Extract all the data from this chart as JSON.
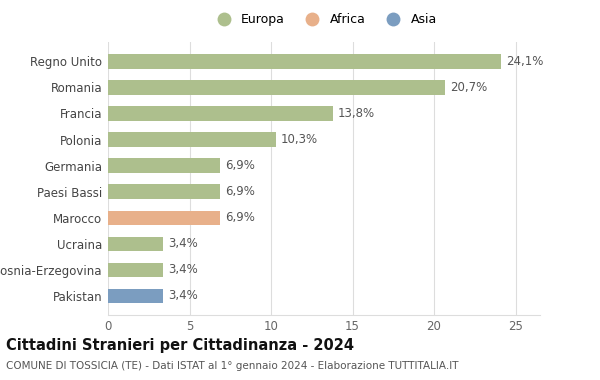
{
  "categories": [
    "Pakistan",
    "Bosnia-Erzegovina",
    "Ucraina",
    "Marocco",
    "Paesi Bassi",
    "Germania",
    "Polonia",
    "Francia",
    "Romania",
    "Regno Unito"
  ],
  "values": [
    3.4,
    3.4,
    3.4,
    6.9,
    6.9,
    6.9,
    10.3,
    13.8,
    20.7,
    24.1
  ],
  "labels": [
    "3,4%",
    "3,4%",
    "3,4%",
    "6,9%",
    "6,9%",
    "6,9%",
    "10,3%",
    "13,8%",
    "20,7%",
    "24,1%"
  ],
  "bar_colors": [
    "#7b9dc0",
    "#adbf8d",
    "#adbf8d",
    "#e8b08a",
    "#adbf8d",
    "#adbf8d",
    "#adbf8d",
    "#adbf8d",
    "#adbf8d",
    "#adbf8d"
  ],
  "legend_labels": [
    "Europa",
    "Africa",
    "Asia"
  ],
  "legend_colors": [
    "#adbf8d",
    "#e8b08a",
    "#7b9dc0"
  ],
  "title": "Cittadini Stranieri per Cittadinanza - 2024",
  "subtitle": "COMUNE DI TOSSICIA (TE) - Dati ISTAT al 1° gennaio 2024 - Elaborazione TUTTITALIA.IT",
  "xlim": [
    0,
    26.5
  ],
  "xticks": [
    0,
    5,
    10,
    15,
    20,
    25
  ],
  "background_color": "#ffffff",
  "bar_height": 0.55,
  "grid_color": "#dddddd",
  "label_fontsize": 8.5,
  "title_fontsize": 10.5,
  "subtitle_fontsize": 7.5,
  "ytick_fontsize": 8.5,
  "xtick_fontsize": 8.5
}
